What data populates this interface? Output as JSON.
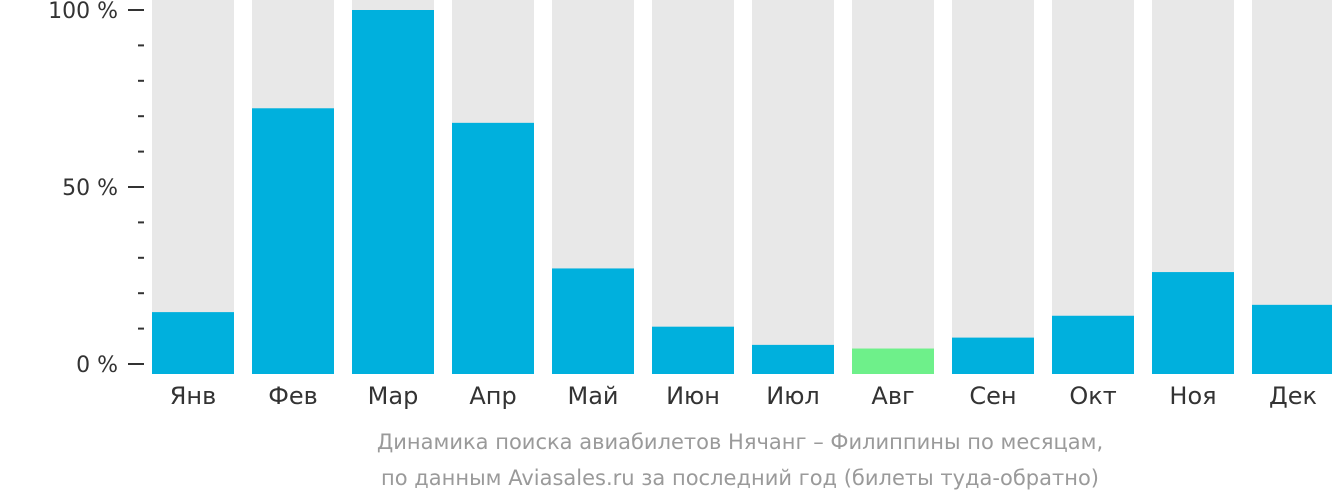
{
  "chart_data": {
    "type": "bar",
    "categories": [
      "Янв",
      "Фев",
      "Мар",
      "Апр",
      "Май",
      "Июн",
      "Июл",
      "Авг",
      "Сен",
      "Окт",
      "Ноя",
      "Дек"
    ],
    "values": [
      17,
      73,
      100,
      69,
      29,
      13,
      8,
      7,
      10,
      16,
      28,
      19
    ],
    "ylim": [
      0,
      100
    ],
    "yticks": [
      "0 %",
      "50 %",
      "100 %"
    ],
    "highlight_category": "Авг"
  },
  "caption": {
    "line1": "Динамика поиска авиабилетов Нячанг – Филиппины по месяцам,",
    "line2": "по данным Aviasales.ru за последний год (билеты туда-обратно)"
  },
  "colors": {
    "bar": "#00b0dd",
    "highlight": "#6ef08a",
    "track": "#e8e8e8",
    "axis": "#333333"
  }
}
